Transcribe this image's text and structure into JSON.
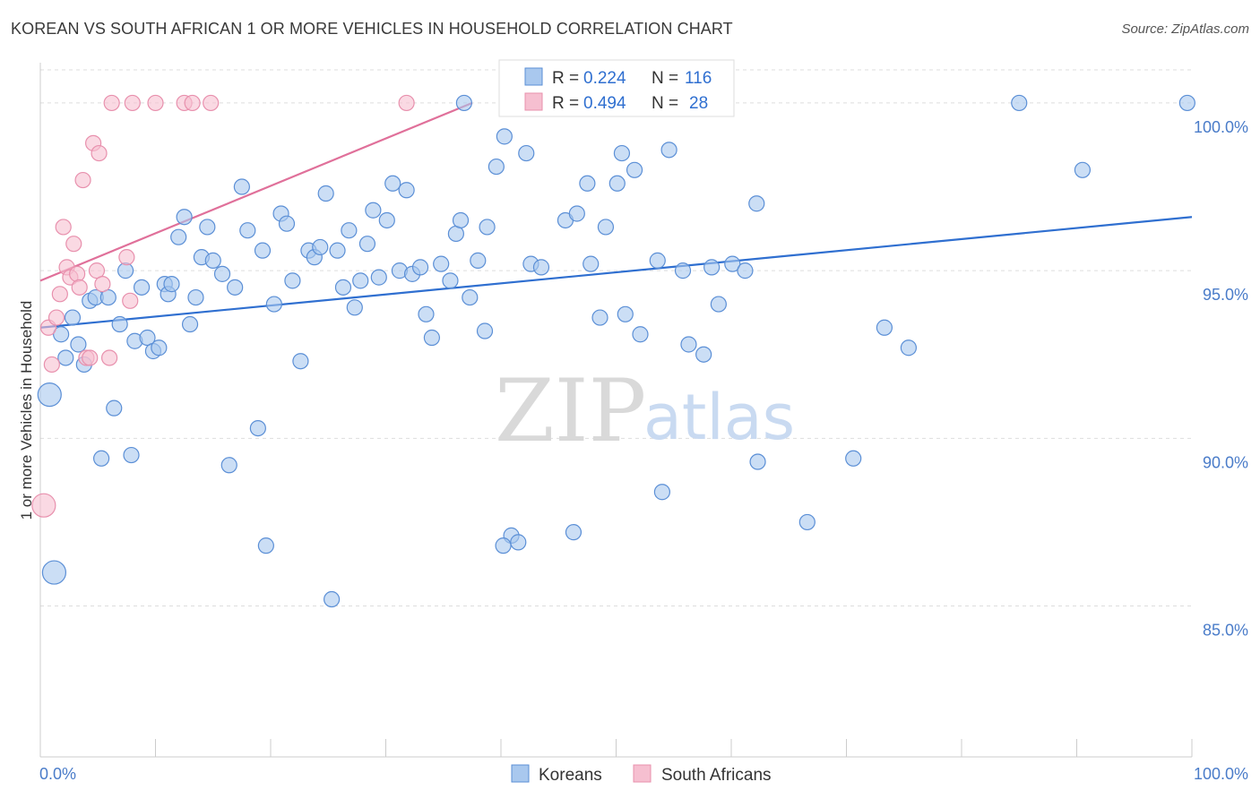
{
  "header": {
    "title": "KOREAN VS SOUTH AFRICAN 1 OR MORE VEHICLES IN HOUSEHOLD CORRELATION CHART",
    "source": "Source: ZipAtlas.com"
  },
  "watermark": {
    "zip": "ZIP",
    "atlas": "atlas"
  },
  "legend_box": {
    "rows": [
      {
        "r_label": "R = ",
        "r_value": "0.224",
        "n_label": "N = ",
        "n_value": "116"
      },
      {
        "r_label": "R = ",
        "r_value": "0.494",
        "n_label": "N = ",
        "n_value": "28"
      }
    ]
  },
  "colors": {
    "korean_fill": "#a9c8ee",
    "korean_stroke": "#5b8fd6",
    "korean_line": "#2f6fd0",
    "sa_fill": "#f6bfd0",
    "sa_stroke": "#e890ad",
    "sa_line": "#e0709a",
    "grid": "#dddddd",
    "tick_text": "#4a7cc9"
  },
  "chart_data": {
    "type": "scatter",
    "title": "KOREAN VS SOUTH AFRICAN 1 OR MORE VEHICLES IN HOUSEHOLD CORRELATION CHART",
    "xlabel": "",
    "ylabel": "1 or more Vehicles in Household",
    "xlim": [
      0,
      100
    ],
    "ylim": [
      80.5,
      101.2
    ],
    "x_tick_labels": [
      "0.0%",
      "100.0%"
    ],
    "y_ticks": [
      85,
      90,
      95,
      100
    ],
    "y_tick_labels": [
      "85.0%",
      "90.0%",
      "95.0%",
      "100.0%"
    ],
    "legend": [
      "Koreans",
      "South Africans"
    ],
    "series": [
      {
        "name": "Koreans",
        "r": 0.224,
        "n": 116,
        "trend": {
          "x": [
            0,
            100
          ],
          "y": [
            93.3,
            96.6
          ]
        },
        "points": [
          [
            0.8,
            91.3
          ],
          [
            1.2,
            86.0
          ],
          [
            1.8,
            93.1
          ],
          [
            2.2,
            92.4
          ],
          [
            2.8,
            93.6
          ],
          [
            3.3,
            92.8
          ],
          [
            3.8,
            92.2
          ],
          [
            4.3,
            94.1
          ],
          [
            4.8,
            94.2
          ],
          [
            5.3,
            89.4
          ],
          [
            5.9,
            94.2
          ],
          [
            6.4,
            90.9
          ],
          [
            6.9,
            93.4
          ],
          [
            7.4,
            95.0
          ],
          [
            7.9,
            89.5
          ],
          [
            8.2,
            92.9
          ],
          [
            8.8,
            94.5
          ],
          [
            9.3,
            93.0
          ],
          [
            9.8,
            92.6
          ],
          [
            10.3,
            92.7
          ],
          [
            10.8,
            94.6
          ],
          [
            11.1,
            94.3
          ],
          [
            11.4,
            94.6
          ],
          [
            12.0,
            96.0
          ],
          [
            12.5,
            96.6
          ],
          [
            13.0,
            93.4
          ],
          [
            13.5,
            94.2
          ],
          [
            14.0,
            95.4
          ],
          [
            14.5,
            96.3
          ],
          [
            15.0,
            95.3
          ],
          [
            15.8,
            94.9
          ],
          [
            16.4,
            89.2
          ],
          [
            16.9,
            94.5
          ],
          [
            17.5,
            97.5
          ],
          [
            18.0,
            96.2
          ],
          [
            18.9,
            90.3
          ],
          [
            19.3,
            95.6
          ],
          [
            19.6,
            86.8
          ],
          [
            20.3,
            94.0
          ],
          [
            20.9,
            96.7
          ],
          [
            21.4,
            96.4
          ],
          [
            21.9,
            94.7
          ],
          [
            22.6,
            92.3
          ],
          [
            23.3,
            95.6
          ],
          [
            23.8,
            95.4
          ],
          [
            24.3,
            95.7
          ],
          [
            24.8,
            97.3
          ],
          [
            25.3,
            85.2
          ],
          [
            25.8,
            95.6
          ],
          [
            26.3,
            94.5
          ],
          [
            26.8,
            96.2
          ],
          [
            27.3,
            93.9
          ],
          [
            27.8,
            94.7
          ],
          [
            28.4,
            95.8
          ],
          [
            28.9,
            96.8
          ],
          [
            29.4,
            94.8
          ],
          [
            30.1,
            96.5
          ],
          [
            30.6,
            97.6
          ],
          [
            31.2,
            95.0
          ],
          [
            31.8,
            97.4
          ],
          [
            32.3,
            94.9
          ],
          [
            33.0,
            95.1
          ],
          [
            33.5,
            93.7
          ],
          [
            34.0,
            93.0
          ],
          [
            34.8,
            95.2
          ],
          [
            35.6,
            94.7
          ],
          [
            36.1,
            96.1
          ],
          [
            36.5,
            96.5
          ],
          [
            36.8,
            100.0
          ],
          [
            37.3,
            94.2
          ],
          [
            38.0,
            95.3
          ],
          [
            38.6,
            93.2
          ],
          [
            38.8,
            96.3
          ],
          [
            39.6,
            98.1
          ],
          [
            40.3,
            99.0
          ],
          [
            40.9,
            87.1
          ],
          [
            40.2,
            86.8
          ],
          [
            42.2,
            98.5
          ],
          [
            42.6,
            95.2
          ],
          [
            43.5,
            95.1
          ],
          [
            45.6,
            96.5
          ],
          [
            46.3,
            87.2
          ],
          [
            46.6,
            96.7
          ],
          [
            47.5,
            97.6
          ],
          [
            47.8,
            95.2
          ],
          [
            48.6,
            93.6
          ],
          [
            49.1,
            96.3
          ],
          [
            50.1,
            97.6
          ],
          [
            50.5,
            98.5
          ],
          [
            50.8,
            93.7
          ],
          [
            51.6,
            98.0
          ],
          [
            52.1,
            93.1
          ],
          [
            53.6,
            95.3
          ],
          [
            54.0,
            88.4
          ],
          [
            54.6,
            98.6
          ],
          [
            55.8,
            95.0
          ],
          [
            56.3,
            92.8
          ],
          [
            57.6,
            92.5
          ],
          [
            58.3,
            95.1
          ],
          [
            58.9,
            94.0
          ],
          [
            60.1,
            95.2
          ],
          [
            61.2,
            95.0
          ],
          [
            62.3,
            89.3
          ],
          [
            62.2,
            97.0
          ],
          [
            66.6,
            87.5
          ],
          [
            70.6,
            89.4
          ],
          [
            73.3,
            93.3
          ],
          [
            75.4,
            92.7
          ],
          [
            85.0,
            100.0
          ],
          [
            90.5,
            98.0
          ],
          [
            99.6,
            100.0
          ],
          [
            41.5,
            86.9
          ]
        ]
      },
      {
        "name": "South Africans",
        "r": 0.494,
        "n": 28,
        "trend": {
          "x": [
            0,
            37.5
          ],
          "y": [
            94.7,
            100.0
          ]
        },
        "points": [
          [
            0.3,
            88.0
          ],
          [
            0.7,
            93.3
          ],
          [
            1.0,
            92.2
          ],
          [
            1.4,
            93.6
          ],
          [
            1.7,
            94.3
          ],
          [
            2.0,
            96.3
          ],
          [
            2.3,
            95.1
          ],
          [
            2.6,
            94.8
          ],
          [
            2.9,
            95.8
          ],
          [
            3.2,
            94.9
          ],
          [
            3.4,
            94.5
          ],
          [
            3.7,
            97.7
          ],
          [
            4.0,
            92.4
          ],
          [
            4.3,
            92.4
          ],
          [
            4.6,
            98.8
          ],
          [
            4.9,
            95.0
          ],
          [
            5.1,
            98.5
          ],
          [
            5.4,
            94.6
          ],
          [
            6.2,
            100.0
          ],
          [
            7.5,
            95.4
          ],
          [
            7.8,
            94.1
          ],
          [
            8.0,
            100.0
          ],
          [
            10.0,
            100.0
          ],
          [
            12.5,
            100.0
          ],
          [
            13.2,
            100.0
          ],
          [
            14.8,
            100.0
          ],
          [
            31.8,
            100.0
          ],
          [
            6.0,
            92.4
          ]
        ]
      }
    ]
  }
}
